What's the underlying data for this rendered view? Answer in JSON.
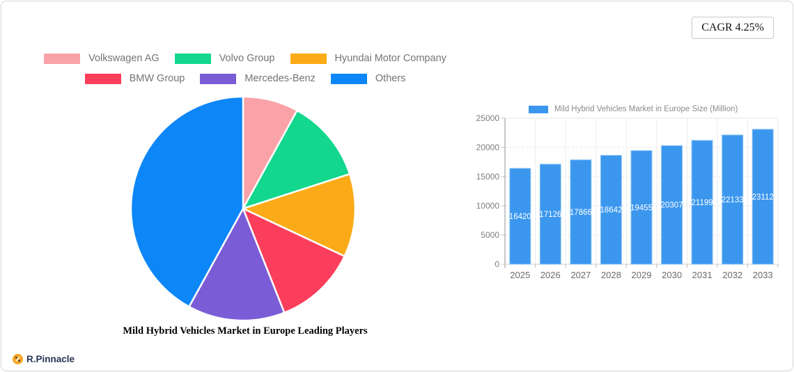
{
  "page": {
    "cagr_badge": "CAGR 4.25%",
    "brand_name": "R.Pinnacle",
    "brand_icon_color": "#f5a623",
    "brand_text_color": "#253655",
    "border_color": "#d5d5d5"
  },
  "chart_data": [
    {
      "type": "pie",
      "title": "Mild Hybrid Vehicles Market in Europe Leading Players",
      "labels": [
        "Volkswagen AG",
        "Volvo Group",
        "Hyundai Motor Company",
        "BMW Group",
        "Mercedes-Benz",
        "Others"
      ],
      "values": [
        8,
        12,
        12,
        12,
        14,
        42
      ],
      "unit": "percent-share-estimated",
      "colors": [
        "#f9a3a8",
        "#12d78d",
        "#fbab17",
        "#fb3e5c",
        "#7a5cd6",
        "#0d86f8"
      ],
      "start_angle": "top",
      "direction": "clockwise",
      "slice_border_color": "#ffffff",
      "legend_position": "top"
    },
    {
      "type": "bar",
      "legend_label": "Mild Hybrid Vehicles Market in Europe Size (Million)",
      "categories": [
        "2025",
        "2026",
        "2027",
        "2028",
        "2029",
        "2030",
        "2031",
        "2032",
        "2033"
      ],
      "values": [
        16420,
        17126,
        17866,
        18642,
        19455,
        20307,
        21199,
        22133,
        23112
      ],
      "ylim": [
        0,
        25000
      ],
      "yticks": [
        0,
        5000,
        10000,
        15000,
        20000,
        25000
      ],
      "bar_color": "#3b97ee",
      "bar_border_color": "#8ec4f6",
      "value_label_color": "#ffffff",
      "tick_label_color": "#7d7d7d",
      "grid": true,
      "legend_position": "top"
    }
  ]
}
